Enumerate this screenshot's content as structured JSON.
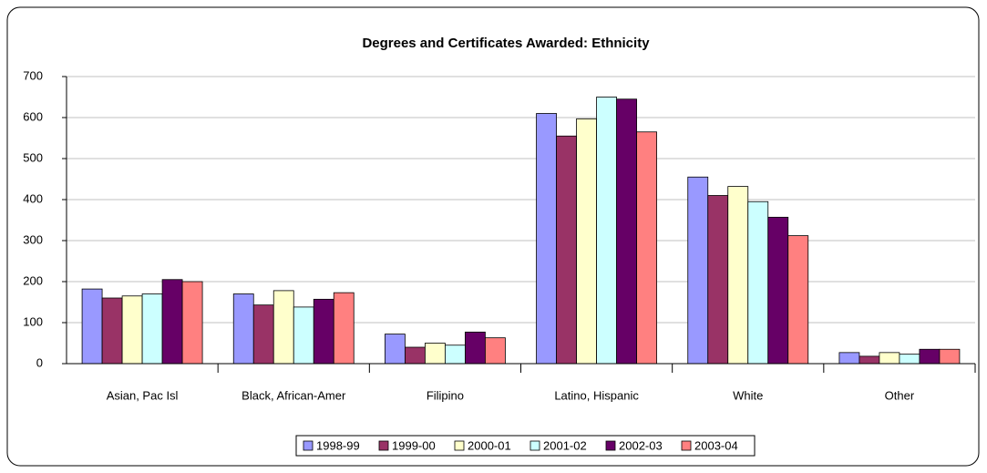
{
  "chart_data": {
    "type": "bar",
    "title": "Degrees and Certificates Awarded: Ethnicity",
    "categories": [
      "Asian, Pac Isl",
      "Black, African-Amer",
      "Filipino",
      "Latino, Hispanic",
      "White",
      "Other"
    ],
    "series": [
      {
        "name": "1998-99",
        "color": "#9999FF",
        "values": [
          182,
          170,
          72,
          610,
          455,
          27
        ]
      },
      {
        "name": "1999-00",
        "color": "#993366",
        "values": [
          160,
          143,
          40,
          555,
          410,
          18
        ]
      },
      {
        "name": "2000-01",
        "color": "#FFFFCC",
        "values": [
          165,
          178,
          50,
          597,
          432,
          27
        ]
      },
      {
        "name": "2001-02",
        "color": "#CCFFFF",
        "values": [
          170,
          138,
          45,
          650,
          395,
          23
        ]
      },
      {
        "name": "2002-03",
        "color": "#660066",
        "values": [
          205,
          157,
          77,
          645,
          357,
          35
        ]
      },
      {
        "name": "2003-04",
        "color": "#FF8080",
        "values": [
          200,
          173,
          63,
          565,
          312,
          35
        ]
      }
    ],
    "ylim": [
      0,
      700
    ],
    "yticks": [
      0,
      100,
      200,
      300,
      400,
      500,
      600,
      700
    ],
    "grid": true,
    "legend": "bottom"
  }
}
